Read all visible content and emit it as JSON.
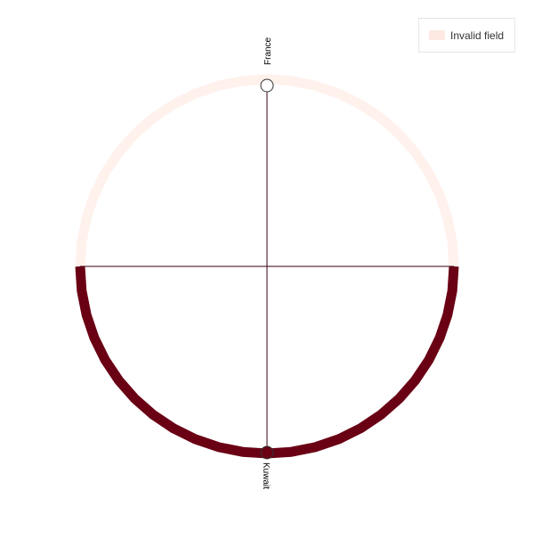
{
  "chart_data": {
    "type": "chord",
    "title": "",
    "nodes": [
      {
        "name": "France",
        "group": "Invalid field",
        "fill": "#ffffff"
      },
      {
        "name": "Kuwait",
        "group": "Invalid field",
        "fill": "#6a0014"
      }
    ],
    "links": [
      {
        "source": "France",
        "target": "Kuwait",
        "value": 1
      }
    ],
    "arcs": [
      {
        "node": "France",
        "start_angle_deg": -90,
        "end_angle_deg": 90,
        "color": "#fff1ec"
      },
      {
        "node": "Kuwait",
        "start_angle_deg": 90,
        "end_angle_deg": 270,
        "color": "#6a0014"
      }
    ],
    "legend": {
      "position": "top-right",
      "items": [
        {
          "label": "Invalid field",
          "color": "#fde8e2"
        }
      ]
    },
    "colors": {
      "arc_light": "#fff1ec",
      "arc_dark": "#6a0014",
      "link": "#3a0010",
      "axis": "#3a0010"
    }
  }
}
